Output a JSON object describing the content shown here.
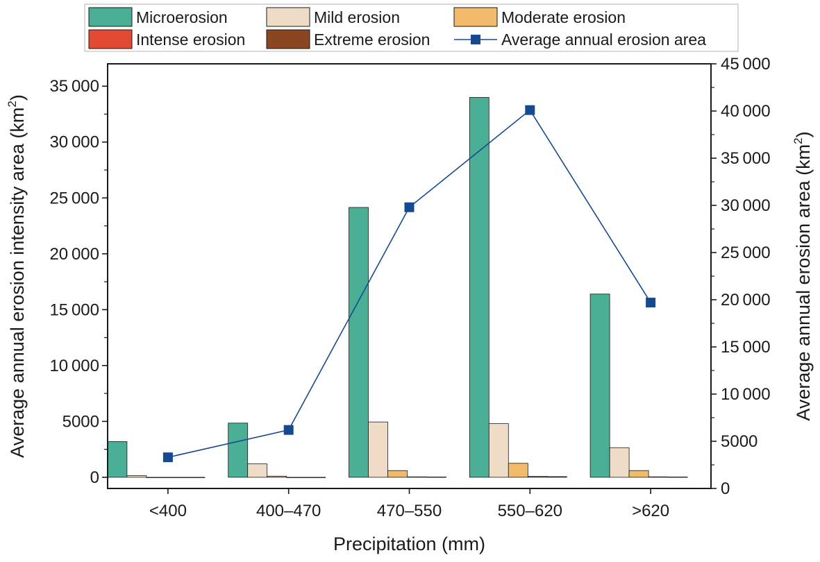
{
  "chart_data": {
    "type": "bar",
    "xlabel": "Precipitation (mm)",
    "ylabel_left": "Average annual erosion intensity area (km",
    "ylabel_right": "Average annual erosion area (km",
    "ylabel_unit_superscript": "2",
    "ylabel_suffix": ")",
    "categories": [
      "<400",
      "400–470",
      "470–550",
      "550–620",
      ">620"
    ],
    "ylim_left": [
      -1000,
      37000
    ],
    "ylim_right": [
      0,
      45000
    ],
    "yticks_left": [
      0,
      5000,
      10000,
      15000,
      20000,
      25000,
      30000,
      35000
    ],
    "ytick_labels_left": [
      "0",
      "5000",
      "10 000",
      "15 000",
      "20 000",
      "25 000",
      "30 000",
      "35 000"
    ],
    "yticks_right": [
      0,
      5000,
      10000,
      15000,
      20000,
      25000,
      30000,
      35000,
      40000,
      45000
    ],
    "ytick_labels_right": [
      "0",
      "5000",
      "10 000",
      "15 000",
      "20 000",
      "25 000",
      "30 000",
      "35 000",
      "40 000",
      "45 000"
    ],
    "legend_position": "top",
    "series": [
      {
        "name": "Microerosion",
        "kind": "bar",
        "color": "#4aaf95",
        "values": [
          3200,
          4850,
          24150,
          34000,
          16400
        ]
      },
      {
        "name": "Mild erosion",
        "kind": "bar",
        "color": "#efdcc6",
        "values": [
          150,
          1200,
          4950,
          4800,
          2650
        ]
      },
      {
        "name": "Moderate erosion",
        "kind": "bar",
        "color": "#f1bb6b",
        "values": [
          0,
          100,
          600,
          1250,
          600
        ]
      },
      {
        "name": "Intense erosion",
        "kind": "bar",
        "color": "#e24a33",
        "values": [
          0,
          0,
          40,
          80,
          40
        ]
      },
      {
        "name": "Extreme erosion",
        "kind": "bar",
        "color": "#8a4621",
        "values": [
          0,
          0,
          30,
          60,
          30
        ]
      },
      {
        "name": "Average annual erosion area",
        "kind": "line",
        "axis": "right",
        "color": "#164a90",
        "values": [
          3300,
          6200,
          29800,
          40100,
          19700
        ]
      }
    ]
  }
}
